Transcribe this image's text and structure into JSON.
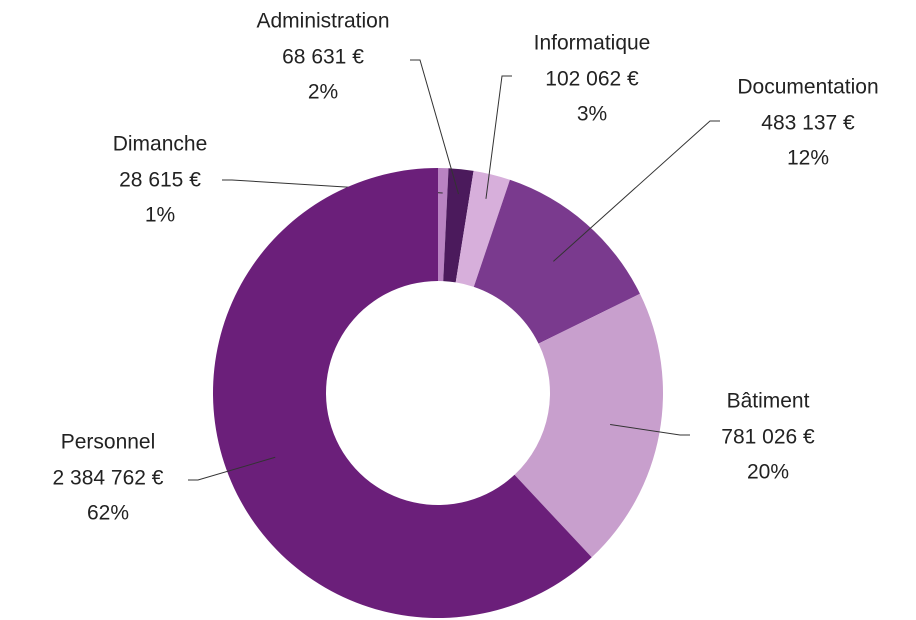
{
  "chart_data": {
    "type": "donut",
    "categories": [
      "Dimanche",
      "Administration",
      "Informatique",
      "Documentation",
      "Bâtiment",
      "Personnel"
    ],
    "values": [
      28615,
      68631,
      102062,
      483137,
      781026,
      2384762
    ],
    "value_labels": [
      "28 615 €",
      "68 631 €",
      "102 062 €",
      "483 137 €",
      "781 026 €",
      "2 384 762 €"
    ],
    "percent_labels": [
      "1%",
      "2%",
      "3%",
      "12%",
      "20%",
      "62%"
    ],
    "colors": [
      "#b983c2",
      "#4b1a5c",
      "#d7afdb",
      "#7a3a8e",
      "#c89fcd",
      "#6b1f7a"
    ]
  }
}
